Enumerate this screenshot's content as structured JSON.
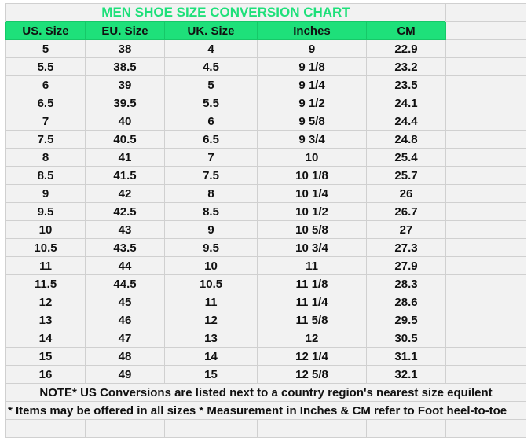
{
  "title": "MEN SHOE SIZE CONVERSION CHART",
  "headers": [
    "US. Size",
    "EU. Size",
    "UK. Size",
    "Inches",
    "CM"
  ],
  "rows": [
    [
      "5",
      "38",
      "4",
      "9",
      "22.9"
    ],
    [
      "5.5",
      "38.5",
      "4.5",
      "9 1/8",
      "23.2"
    ],
    [
      "6",
      "39",
      "5",
      "9 1/4",
      "23.5"
    ],
    [
      "6.5",
      "39.5",
      "5.5",
      "9 1/2",
      "24.1"
    ],
    [
      "7",
      "40",
      "6",
      "9 5/8",
      "24.4"
    ],
    [
      "7.5",
      "40.5",
      "6.5",
      "9 3/4",
      "24.8"
    ],
    [
      "8",
      "41",
      "7",
      "10",
      "25.4"
    ],
    [
      "8.5",
      "41.5",
      "7.5",
      "10 1/8",
      "25.7"
    ],
    [
      "9",
      "42",
      "8",
      "10 1/4",
      "26"
    ],
    [
      "9.5",
      "42.5",
      "8.5",
      "10 1/2",
      "26.7"
    ],
    [
      "10",
      "43",
      "9",
      "10 5/8",
      "27"
    ],
    [
      "10.5",
      "43.5",
      "9.5",
      "10 3/4",
      "27.3"
    ],
    [
      "11",
      "44",
      "10",
      "11",
      "27.9"
    ],
    [
      "11.5",
      "44.5",
      "10.5",
      "11 1/8",
      "28.3"
    ],
    [
      "12",
      "45",
      "11",
      "11 1/4",
      "28.6"
    ],
    [
      "13",
      "46",
      "12",
      "11 5/8",
      "29.5"
    ],
    [
      "14",
      "47",
      "13",
      "12",
      "30.5"
    ],
    [
      "15",
      "48",
      "14",
      "12 1/4",
      "31.1"
    ],
    [
      "16",
      "49",
      "15",
      "12 5/8",
      "32.1"
    ]
  ],
  "note1": "NOTE* US Conversions are listed next to a country region's nearest size equilent",
  "note2": "* Items may be offered in all sizes * Measurement in Inches & CM refer to Foot heel-to-toe",
  "colors": {
    "accent": "#1ee07a",
    "cell_bg": "#f2f2f2",
    "grid": "#d0d0d0"
  }
}
